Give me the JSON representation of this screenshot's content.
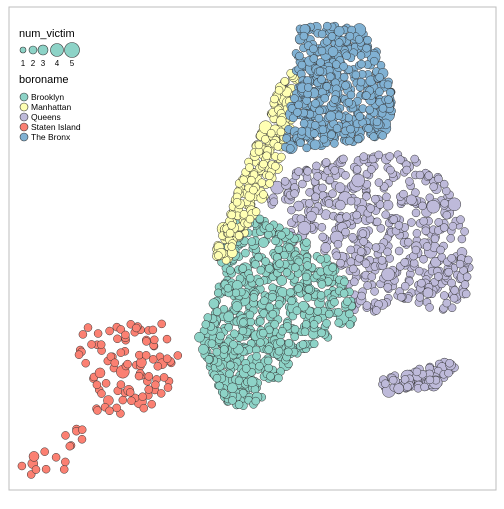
{
  "legend": {
    "size_title": "num_victim",
    "size_labels": [
      "1",
      "2",
      "3",
      "4",
      "5"
    ],
    "color_title": "boroname",
    "boroughs": [
      {
        "label": "Brooklyn",
        "color": "#8DD3C7"
      },
      {
        "label": "Manhattan",
        "color": "#FFFFB3"
      },
      {
        "label": "Queens",
        "color": "#BEBADA"
      },
      {
        "label": "Staten Island",
        "color": "#FB8072"
      },
      {
        "label": "The Bronx",
        "color": "#80B1D3"
      }
    ]
  },
  "style": {
    "frame_color": "#bdbdbd",
    "point_stroke": "#333333",
    "size_swatch_color": "#8DD3C7"
  }
}
